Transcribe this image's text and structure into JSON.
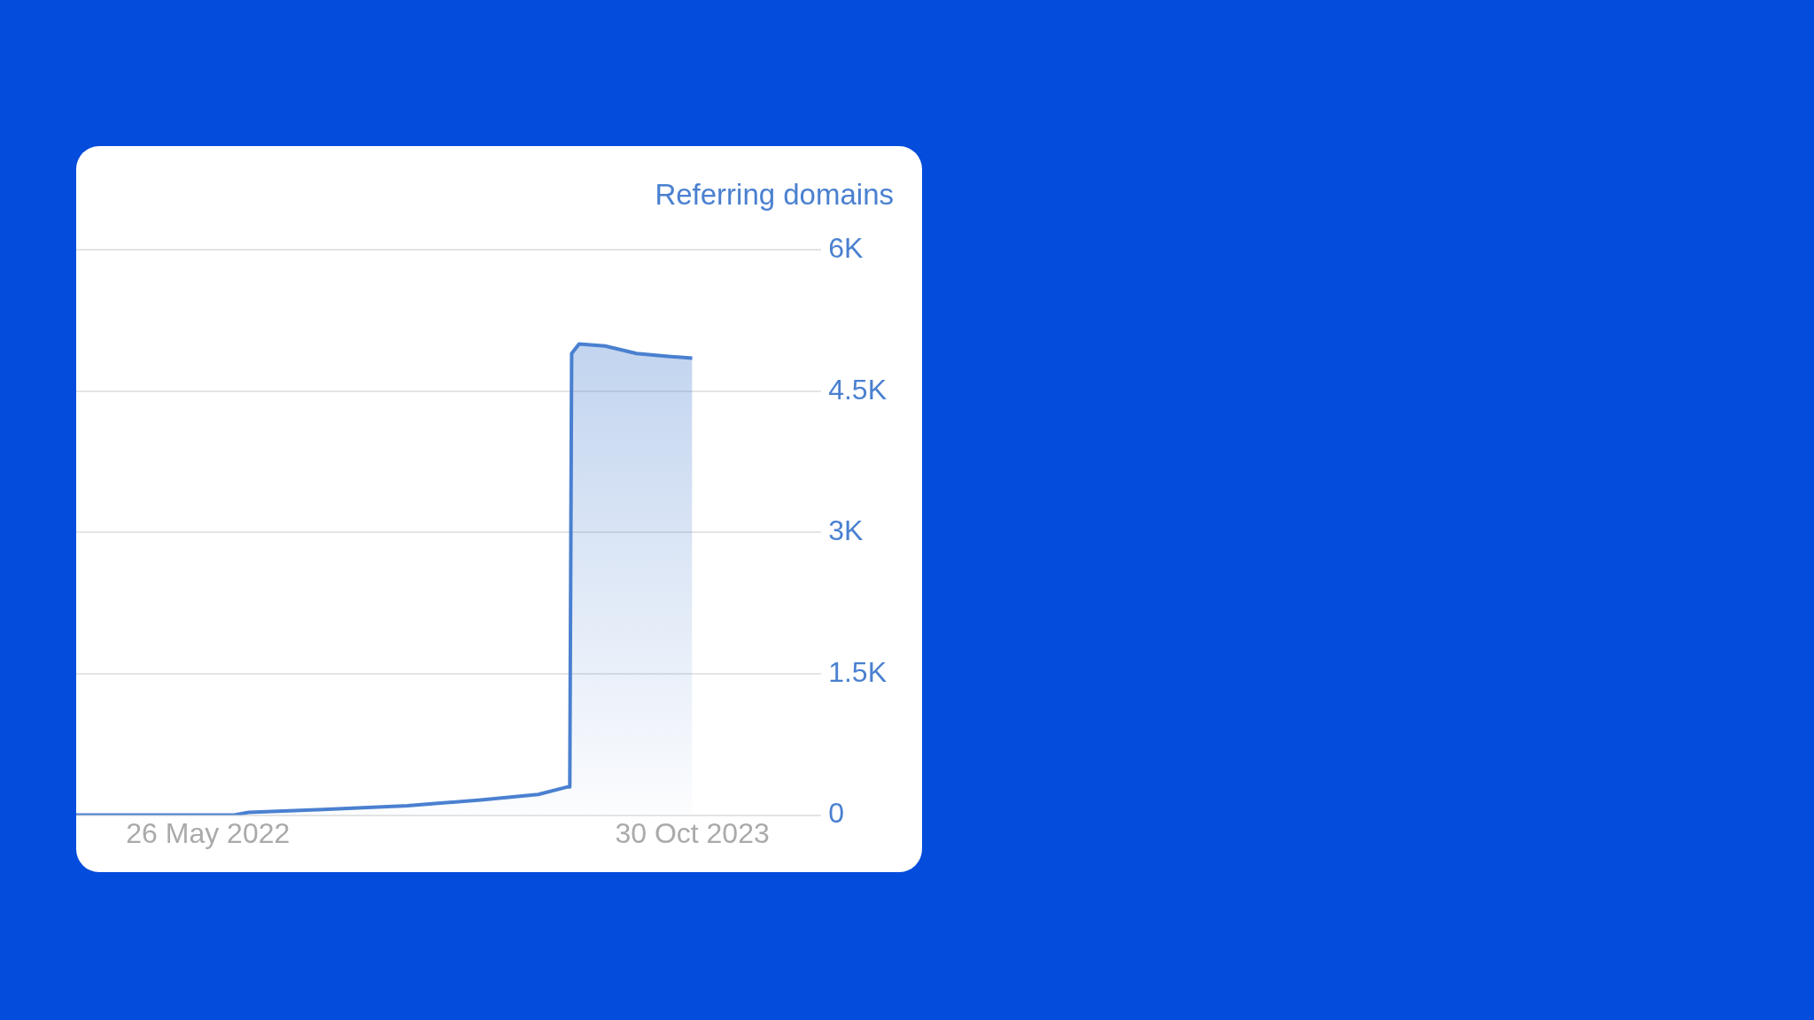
{
  "chart_data": {
    "type": "area",
    "ylabel": "Referring domains",
    "x": [
      "2022-01-04",
      "2022-04-09",
      "2022-06-22",
      "2022-07-09",
      "2022-09-27",
      "2022-12-27",
      "2023-03-16",
      "2023-05-17",
      "2023-06-18",
      "2023-06-20",
      "2023-06-22",
      "2023-06-30",
      "2023-07-28",
      "2023-08-31",
      "2023-10-04",
      "2023-10-30"
    ],
    "series": [
      {
        "color": "#4a80d0",
        "values": [
          0,
          0,
          0,
          30,
          60,
          100,
          160,
          220,
          300,
          300,
          4900,
          5000,
          4980,
          4900,
          4870,
          4850
        ]
      }
    ],
    "xlim": [
      "2022-01-04",
      "2024-03-17"
    ],
    "xticks": [
      {
        "value": "2022-05-26",
        "label": "26 May 2022"
      },
      {
        "value": "2023-10-30",
        "label": "30 Oct 2023"
      }
    ],
    "ylim": [
      0,
      6000
    ],
    "yticks": [
      {
        "value": 0,
        "label": "0"
      },
      {
        "value": 1500,
        "label": "1.5K"
      },
      {
        "value": 3000,
        "label": "3K"
      },
      {
        "value": 4500,
        "label": "4.5K"
      },
      {
        "value": 6000,
        "label": "6K"
      }
    ],
    "grid": "y",
    "legend": false,
    "marker": "none",
    "line_style": "solid"
  }
}
